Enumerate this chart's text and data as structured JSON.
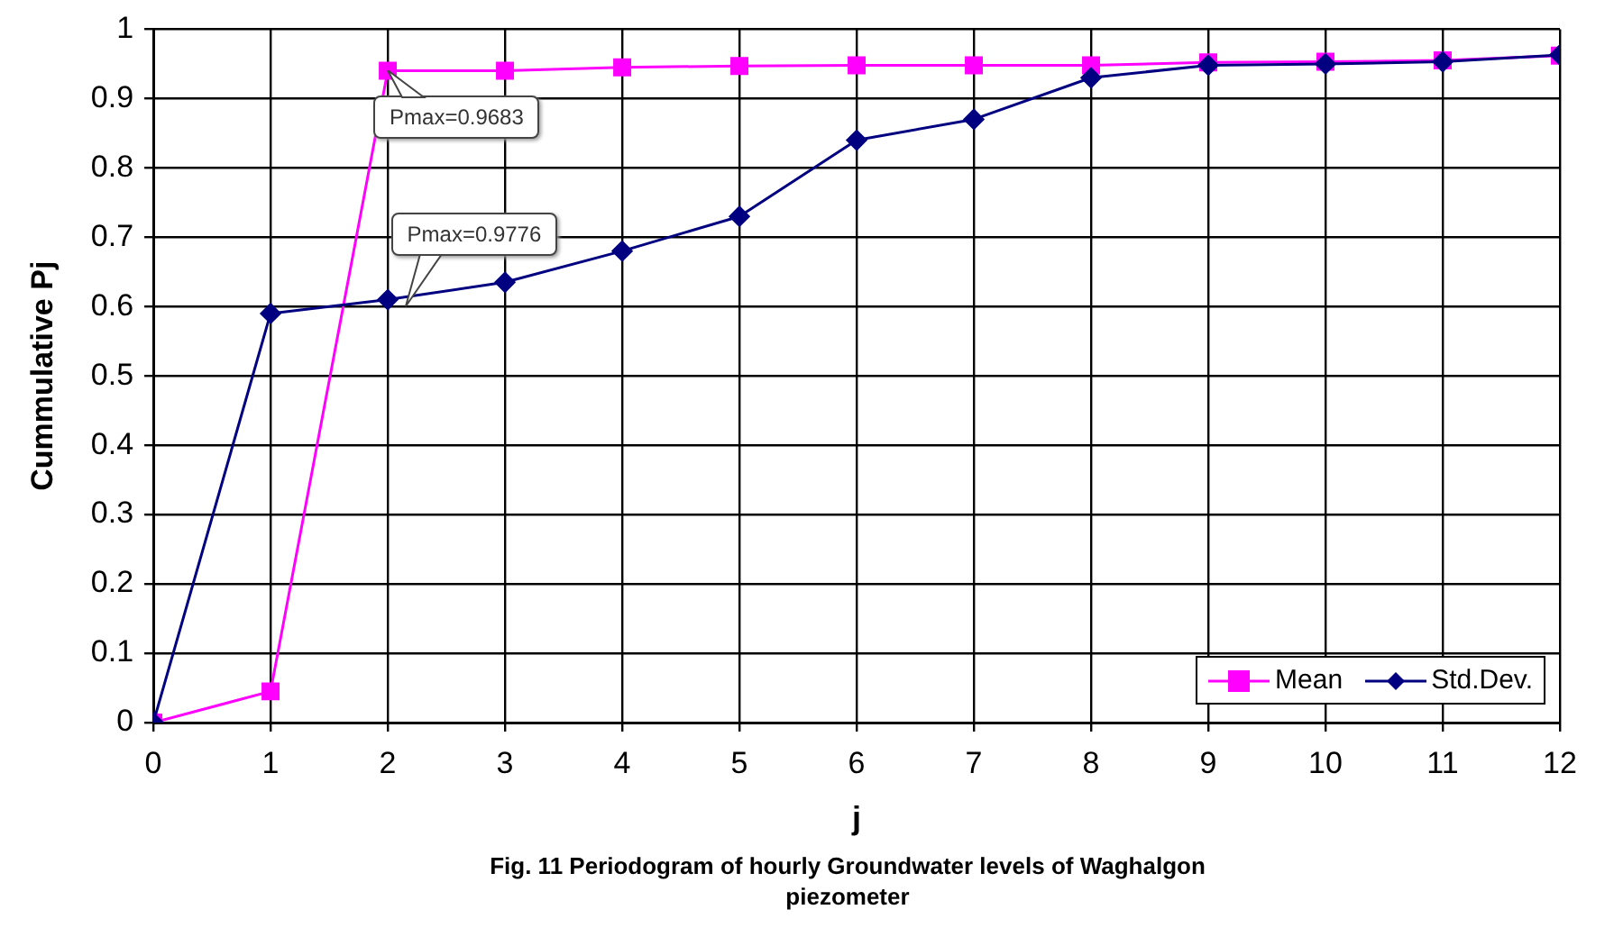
{
  "chart_data": {
    "type": "line",
    "title": "Fig. 11 Periodogram of hourly Groundwater levels of Waghalgon piezometer",
    "xlabel": "j",
    "ylabel": "Cummulative Pj",
    "x": [
      0,
      1,
      2,
      3,
      4,
      5,
      6,
      7,
      8,
      9,
      10,
      11,
      12
    ],
    "series": [
      {
        "name": "Mean",
        "color": "#ff00ff",
        "marker": "square",
        "values": [
          0,
          0.045,
          0.94,
          0.94,
          0.945,
          0.947,
          0.948,
          0.948,
          0.948,
          0.952,
          0.953,
          0.955,
          0.962
        ]
      },
      {
        "name": "Std.Dev.",
        "color": "#000080",
        "marker": "diamond",
        "values": [
          0,
          0.59,
          0.61,
          0.635,
          0.68,
          0.73,
          0.84,
          0.87,
          0.93,
          0.948,
          0.95,
          0.953,
          0.963
        ]
      }
    ],
    "annotations": [
      {
        "text": "Pmax=0.9683",
        "x": 2,
        "y": 0.94
      },
      {
        "text": "Pmax=0.9776",
        "x": 2.15,
        "y": 0.6
      }
    ],
    "xlim": [
      0,
      12
    ],
    "xticks": [
      0,
      1,
      2,
      3,
      4,
      5,
      6,
      7,
      8,
      9,
      10,
      11,
      12
    ],
    "ylim": [
      0,
      1
    ],
    "yticks": [
      0,
      0.1,
      0.2,
      0.3,
      0.4,
      0.5,
      0.6,
      0.7,
      0.8,
      0.9,
      1
    ],
    "grid": true,
    "legend": "bottom right",
    "line_style": "solid"
  }
}
